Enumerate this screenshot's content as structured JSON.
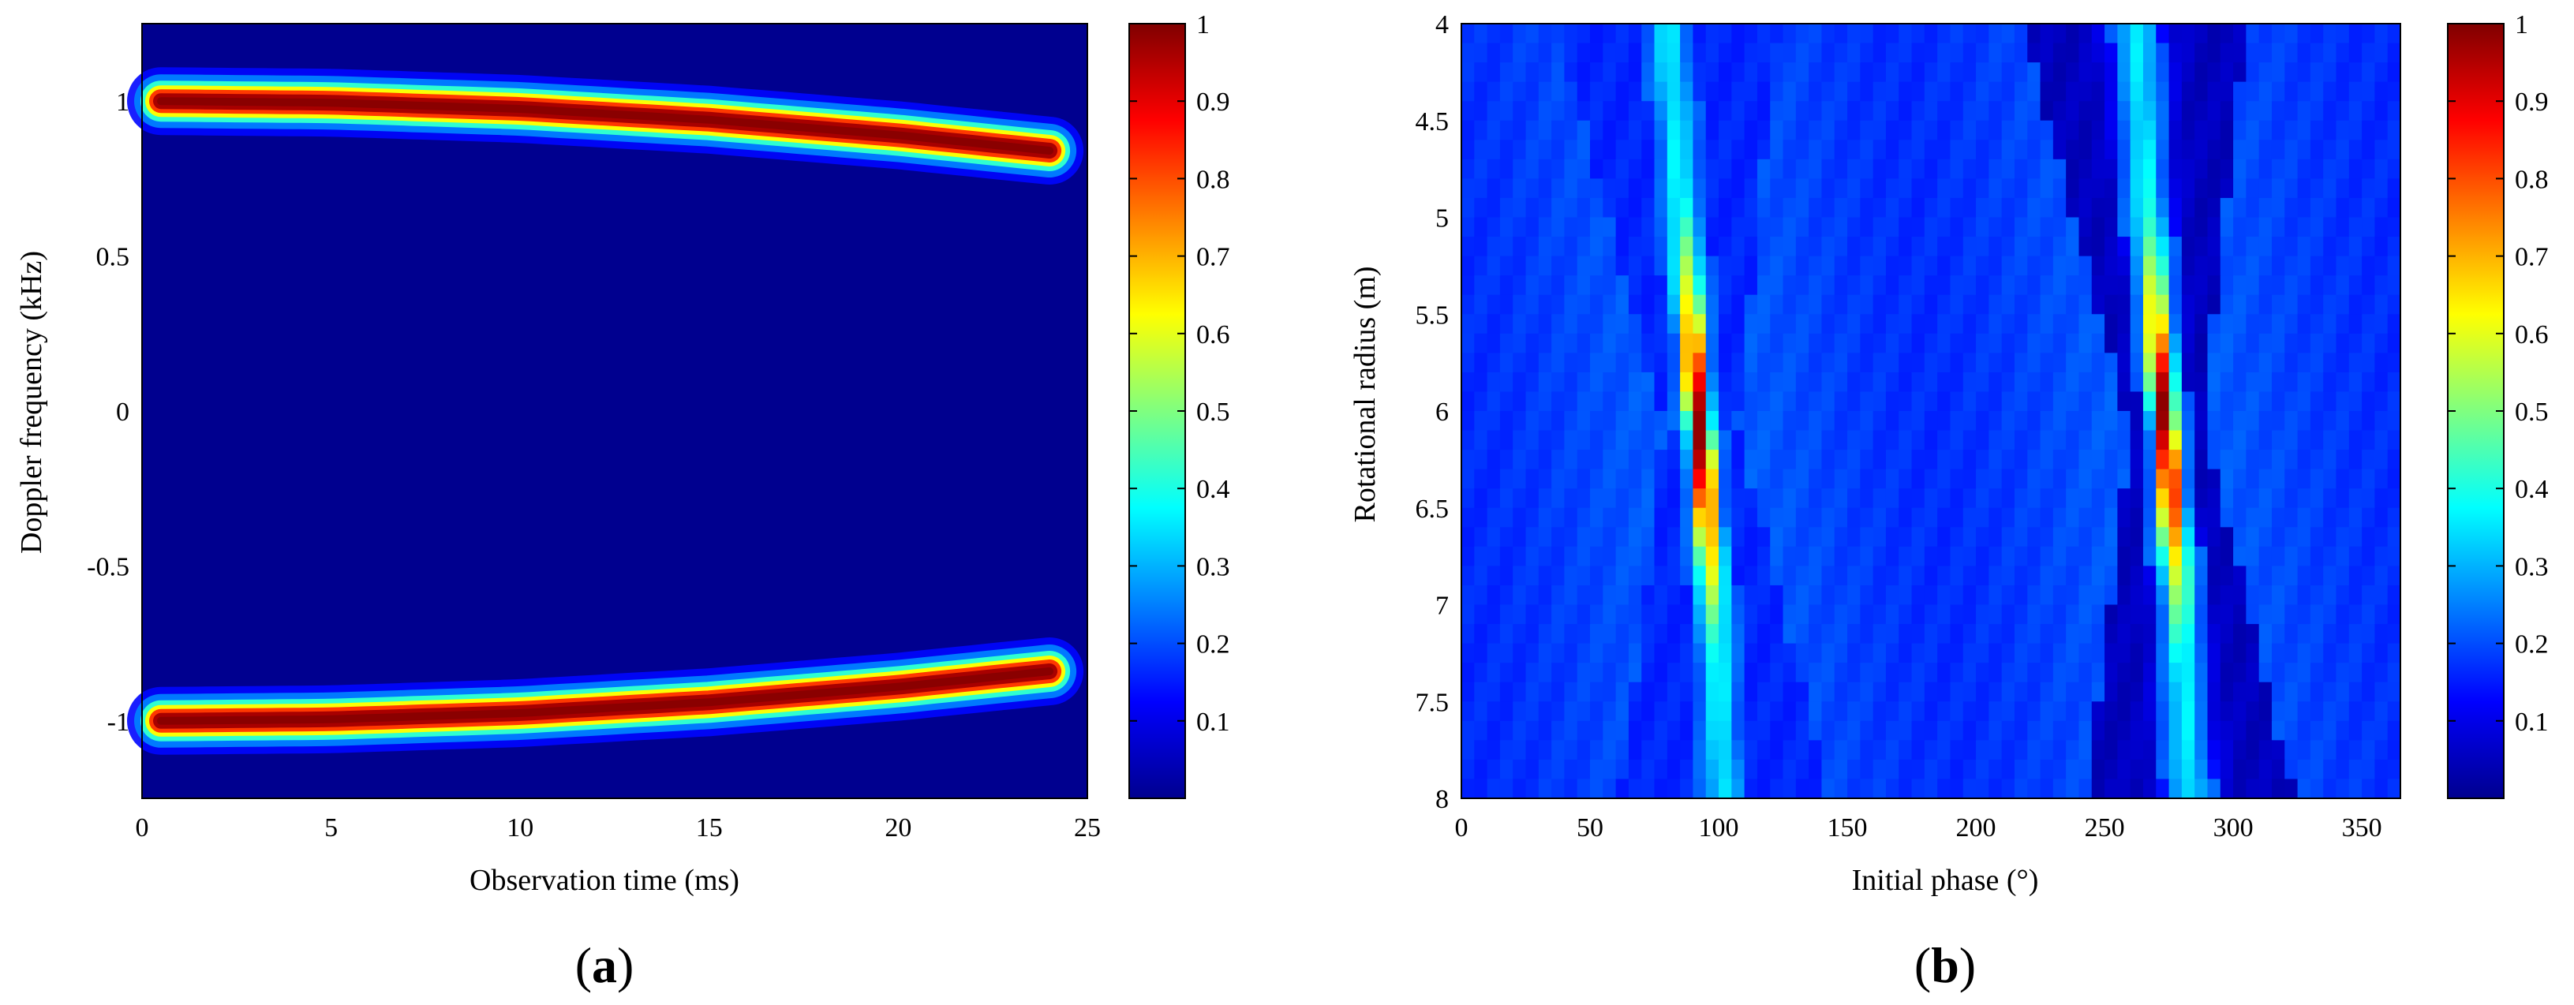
{
  "panels": [
    {
      "label": {
        "open": "(",
        "letter": "a",
        "close": ")"
      },
      "chart_data": {
        "type": "heatmap",
        "xlabel": "Observation time (ms)",
        "ylabel": "Doppler frequency (kHz)",
        "xlim": [
          0,
          25
        ],
        "ylim": [
          -1.25,
          1.25
        ],
        "xticks": [
          0,
          5,
          10,
          15,
          20,
          25
        ],
        "xtick_labels": [
          "0",
          "5",
          "10",
          "15",
          "20",
          "25"
        ],
        "yticks": [
          1,
          0.5,
          0,
          -0.5,
          -1
        ],
        "ytick_labels": [
          "1",
          "0.5",
          "0",
          "-0.5",
          "-1"
        ],
        "colormap": "jet",
        "colorbar": {
          "range": [
            0,
            1
          ],
          "ticks": [
            1,
            0.9,
            0.8,
            0.7,
            0.6,
            0.5,
            0.4,
            0.3,
            0.2,
            0.1
          ],
          "tick_labels": [
            "1",
            "0.9",
            "0.8",
            "0.7",
            "0.6",
            "0.5",
            "0.4",
            "0.3",
            "0.2",
            "0.1"
          ]
        },
        "series": [
          {
            "x": [
              0.5,
              5,
              10,
              15,
              20,
              24
            ],
            "y": [
              1.0,
              0.995,
              0.975,
              0.94,
              0.89,
              0.84
            ]
          },
          {
            "x": [
              0.5,
              5,
              10,
              15,
              20,
              24
            ],
            "y": [
              -1.0,
              -0.995,
              -0.975,
              -0.94,
              -0.89,
              -0.84
            ]
          }
        ],
        "grid": false
      }
    },
    {
      "label": {
        "open": "(",
        "letter": "b",
        "close": ")"
      },
      "chart_data": {
        "type": "heatmap",
        "xlabel": "Initial phase (°)",
        "ylabel": "Rotational radius (m)",
        "xlim": [
          0,
          365
        ],
        "ylim": [
          8,
          4
        ],
        "xticks": [
          0,
          50,
          100,
          150,
          200,
          250,
          300,
          350
        ],
        "xtick_labels": [
          "0",
          "50",
          "100",
          "150",
          "200",
          "250",
          "300",
          "350"
        ],
        "yticks": [
          4,
          4.5,
          5,
          5.5,
          6,
          6.5,
          7,
          7.5,
          8
        ],
        "ytick_labels": [
          "4",
          "4.5",
          "5",
          "5.5",
          "6",
          "6.5",
          "7",
          "7.5",
          "8"
        ],
        "colormap": "jet",
        "colorbar": {
          "range": [
            0,
            1
          ],
          "ticks": [
            1,
            0.9,
            0.8,
            0.7,
            0.6,
            0.5,
            0.4,
            0.3,
            0.2,
            0.1
          ],
          "tick_labels": [
            "1",
            "0.9",
            "0.8",
            "0.7",
            "0.6",
            "0.5",
            "0.4",
            "0.3",
            "0.2",
            "0.1"
          ]
        },
        "peak": {
          "radius": 6.1,
          "phases": [
            92,
            273
          ]
        },
        "ridges": [
          {
            "radius": [
              4,
              5,
              6,
              7,
              8
            ],
            "phase": [
              80,
              86,
              92,
              98,
              102
            ]
          },
          {
            "radius": [
              4,
              5,
              6,
              7,
              8
            ],
            "phase": [
              262,
              267,
              273,
              279,
              283
            ]
          }
        ],
        "grid": false
      }
    }
  ]
}
